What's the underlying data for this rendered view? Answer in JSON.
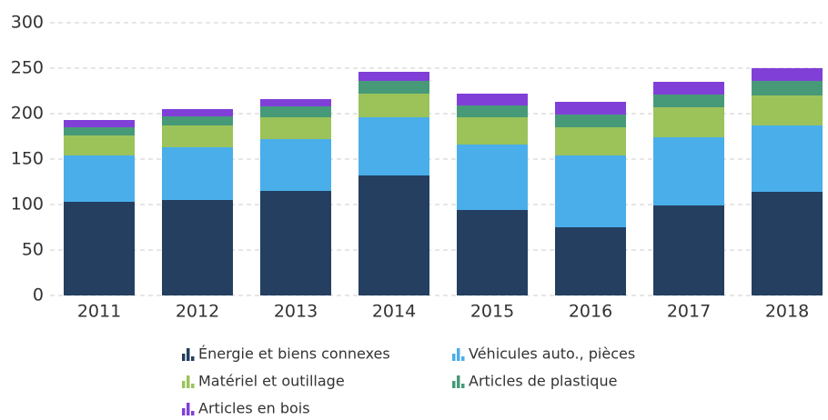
{
  "chart_data": {
    "type": "stacked-bar",
    "categories": [
      "2011",
      "2012",
      "2013",
      "2014",
      "2015",
      "2016",
      "2017",
      "2018"
    ],
    "series": [
      {
        "name": "Énergie et biens connexes",
        "color": "#243f60",
        "values": [
          103,
          105,
          115,
          132,
          94,
          75,
          99,
          114
        ]
      },
      {
        "name": "Véhicules auto., pièces",
        "color": "#4aaeea",
        "values": [
          51,
          58,
          57,
          64,
          72,
          79,
          75,
          73
        ]
      },
      {
        "name": "Matériel et outillage",
        "color": "#9bc35a",
        "values": [
          22,
          24,
          24,
          26,
          30,
          31,
          33,
          33
        ]
      },
      {
        "name": "Articles de plastique",
        "color": "#479a78",
        "values": [
          9,
          10,
          12,
          14,
          13,
          14,
          14,
          16
        ]
      },
      {
        "name": "Articles en bois",
        "color": "#8040d8",
        "values": [
          8,
          8,
          8,
          10,
          13,
          14,
          14,
          14
        ]
      }
    ],
    "ylim": [
      0,
      300
    ],
    "yticks": [
      0,
      50,
      100,
      150,
      200,
      250,
      300
    ],
    "grid": true,
    "legend": "bottom"
  }
}
